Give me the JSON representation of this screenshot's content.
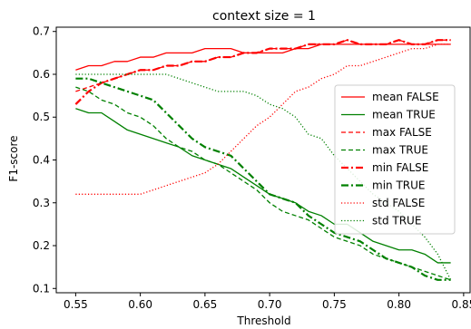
{
  "chart_data": {
    "type": "line",
    "title": "context size = 1",
    "xlabel": "Threshold",
    "ylabel": "F1-score",
    "xlim": [
      0.535,
      0.855
    ],
    "ylim": [
      0.09,
      0.71
    ],
    "xticks": [
      0.55,
      0.6,
      0.65,
      0.7,
      0.75,
      0.8,
      0.85
    ],
    "yticks": [
      0.1,
      0.2,
      0.3,
      0.4,
      0.5,
      0.6,
      0.7
    ],
    "xtick_labels": [
      "0.55",
      "0.60",
      "0.65",
      "0.70",
      "0.75",
      "0.80",
      "0.85"
    ],
    "ytick_labels": [
      "0.1",
      "0.2",
      "0.3",
      "0.4",
      "0.5",
      "0.6",
      "0.7"
    ],
    "grid": false,
    "legend_position": "center-right",
    "x": [
      0.55,
      0.56,
      0.57,
      0.58,
      0.59,
      0.6,
      0.61,
      0.62,
      0.63,
      0.64,
      0.65,
      0.66,
      0.67,
      0.68,
      0.69,
      0.7,
      0.71,
      0.72,
      0.73,
      0.74,
      0.75,
      0.76,
      0.77,
      0.78,
      0.79,
      0.8,
      0.81,
      0.82,
      0.83,
      0.84
    ],
    "series": [
      {
        "name": "mean FALSE",
        "color": "#ff0000",
        "dash": "solid",
        "width": 1.3,
        "values": [
          0.61,
          0.62,
          0.62,
          0.63,
          0.63,
          0.64,
          0.64,
          0.65,
          0.65,
          0.65,
          0.66,
          0.66,
          0.66,
          0.65,
          0.65,
          0.65,
          0.65,
          0.66,
          0.66,
          0.67,
          0.67,
          0.67,
          0.67,
          0.67,
          0.67,
          0.67,
          0.67,
          0.67,
          0.67,
          0.67
        ]
      },
      {
        "name": "mean TRUE",
        "color": "#008000",
        "dash": "solid",
        "width": 1.3,
        "values": [
          0.52,
          0.51,
          0.51,
          0.49,
          0.47,
          0.46,
          0.45,
          0.44,
          0.43,
          0.41,
          0.4,
          0.39,
          0.38,
          0.36,
          0.34,
          0.32,
          0.31,
          0.3,
          0.28,
          0.27,
          0.25,
          0.25,
          0.23,
          0.21,
          0.2,
          0.19,
          0.19,
          0.18,
          0.16,
          0.16
        ]
      },
      {
        "name": "max FALSE",
        "color": "#ff0000",
        "dash": "dashed",
        "width": 1.3,
        "values": [
          0.56,
          0.57,
          0.58,
          0.59,
          0.6,
          0.61,
          0.61,
          0.62,
          0.62,
          0.63,
          0.63,
          0.64,
          0.64,
          0.65,
          0.65,
          0.66,
          0.66,
          0.66,
          0.67,
          0.67,
          0.67,
          0.68,
          0.67,
          0.67,
          0.67,
          0.68,
          0.67,
          0.67,
          0.68,
          0.68
        ]
      },
      {
        "name": "max TRUE",
        "color": "#008000",
        "dash": "dashed",
        "width": 1.3,
        "values": [
          0.57,
          0.56,
          0.54,
          0.53,
          0.51,
          0.5,
          0.48,
          0.45,
          0.43,
          0.42,
          0.4,
          0.39,
          0.37,
          0.35,
          0.33,
          0.3,
          0.28,
          0.27,
          0.26,
          0.24,
          0.22,
          0.21,
          0.2,
          0.18,
          0.17,
          0.16,
          0.15,
          0.14,
          0.13,
          0.12
        ]
      },
      {
        "name": "min FALSE",
        "color": "#ff0000",
        "dash": "dashdot",
        "width": 2.2,
        "values": [
          0.53,
          0.56,
          0.58,
          0.59,
          0.6,
          0.61,
          0.61,
          0.62,
          0.62,
          0.63,
          0.63,
          0.64,
          0.64,
          0.65,
          0.65,
          0.66,
          0.66,
          0.66,
          0.67,
          0.67,
          0.67,
          0.68,
          0.67,
          0.67,
          0.67,
          0.68,
          0.67,
          0.67,
          0.68,
          0.68
        ]
      },
      {
        "name": "min TRUE",
        "color": "#008000",
        "dash": "dashdot",
        "width": 2.2,
        "values": [
          0.59,
          0.59,
          0.58,
          0.57,
          0.56,
          0.55,
          0.54,
          0.51,
          0.48,
          0.45,
          0.43,
          0.42,
          0.41,
          0.38,
          0.35,
          0.32,
          0.31,
          0.3,
          0.27,
          0.25,
          0.23,
          0.22,
          0.21,
          0.19,
          0.17,
          0.16,
          0.15,
          0.13,
          0.12,
          0.12
        ]
      },
      {
        "name": "std FALSE",
        "color": "#ff0000",
        "dash": "dotted",
        "width": 1.3,
        "values": [
          0.32,
          0.32,
          0.32,
          0.32,
          0.32,
          0.32,
          0.33,
          0.34,
          0.35,
          0.36,
          0.37,
          0.39,
          0.42,
          0.45,
          0.48,
          0.5,
          0.53,
          0.56,
          0.57,
          0.59,
          0.6,
          0.62,
          0.62,
          0.63,
          0.64,
          0.65,
          0.66,
          0.66,
          0.67,
          0.67
        ]
      },
      {
        "name": "std TRUE",
        "color": "#008000",
        "dash": "dotted",
        "width": 1.3,
        "values": [
          0.6,
          0.6,
          0.6,
          0.6,
          0.6,
          0.6,
          0.6,
          0.6,
          0.59,
          0.58,
          0.57,
          0.56,
          0.56,
          0.56,
          0.55,
          0.53,
          0.52,
          0.5,
          0.46,
          0.45,
          0.41,
          0.38,
          0.35,
          0.32,
          0.3,
          0.28,
          0.25,
          0.22,
          0.18,
          0.12
        ]
      }
    ]
  }
}
